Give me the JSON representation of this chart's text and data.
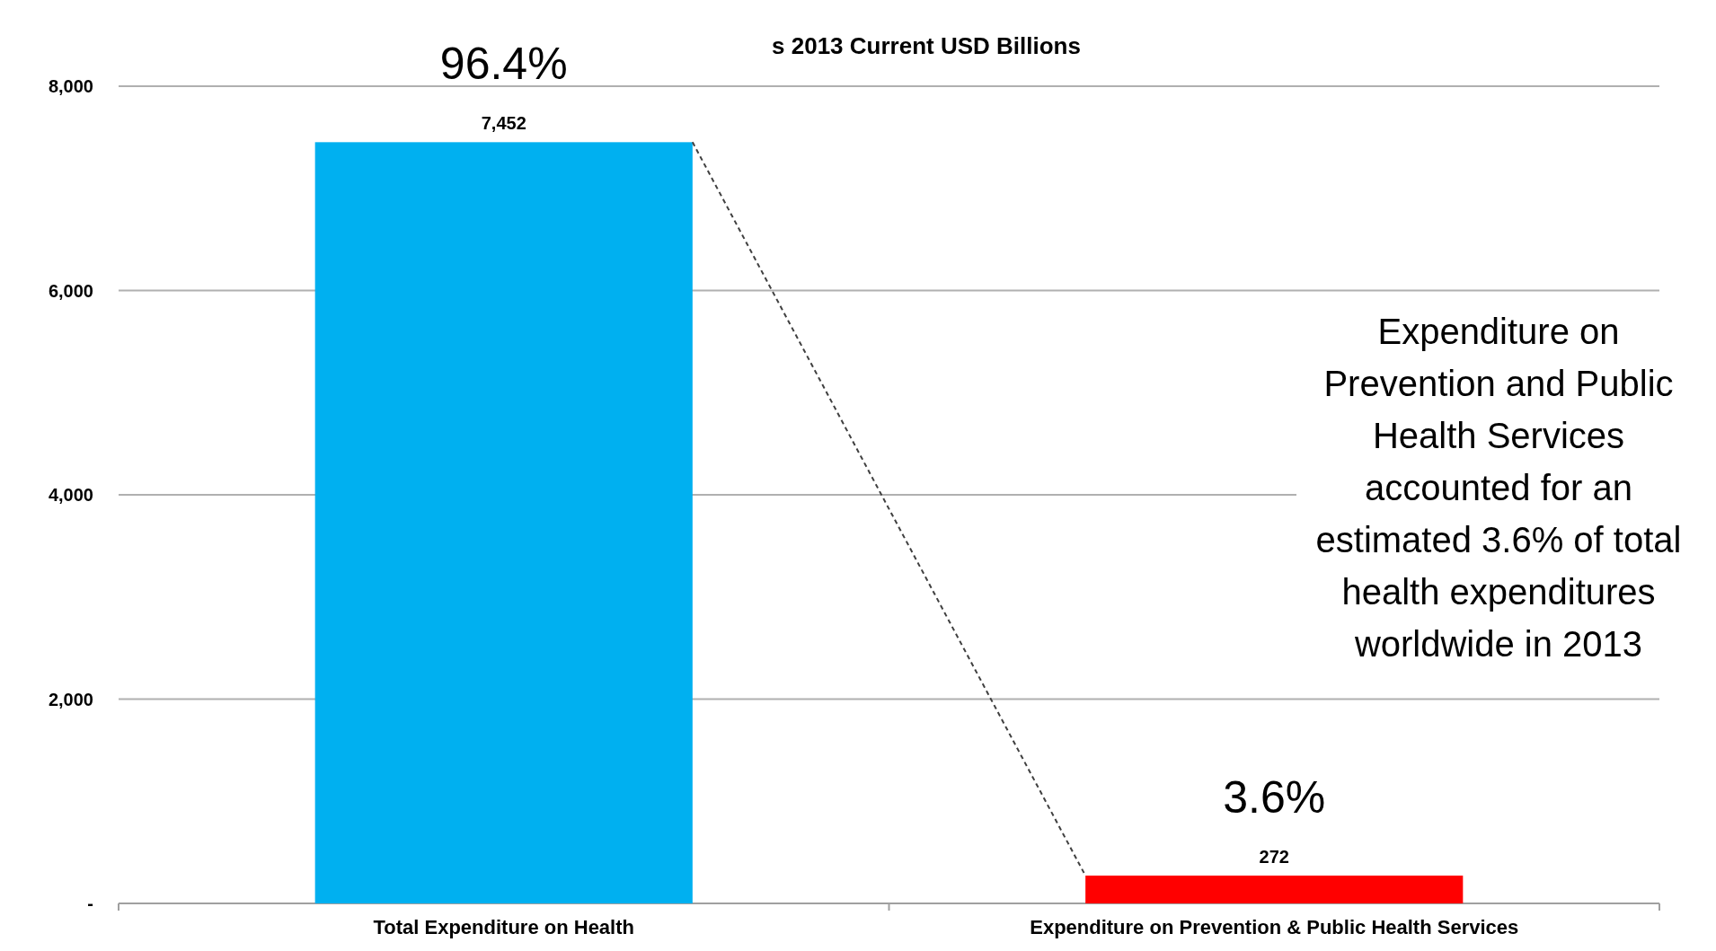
{
  "chart_data": {
    "type": "bar",
    "title": "s 2013 Current USD Billions",
    "categories": [
      "Total Expenditure on Health",
      "Expenditure on Prevention & Public Health Services"
    ],
    "values": [
      7452,
      272
    ],
    "colors": [
      "#00b0f0",
      "#ff0000"
    ],
    "ylim": [
      0,
      8000
    ],
    "yticks": [
      {
        "value": 0,
        "label": "-"
      },
      {
        "value": 2000,
        "label": "2,000"
      },
      {
        "value": 4000,
        "label": "4,000"
      },
      {
        "value": 6000,
        "label": "6,000"
      },
      {
        "value": 8000,
        "label": "8,000"
      }
    ],
    "grid": "y",
    "value_labels": [
      "7,452",
      "272"
    ],
    "annotations": [
      "96.4%",
      "3.6%",
      "Expenditure on Prevention and Public Health Services accounted for an estimated 3.6% of total health expenditures worldwide in 2013"
    ]
  }
}
